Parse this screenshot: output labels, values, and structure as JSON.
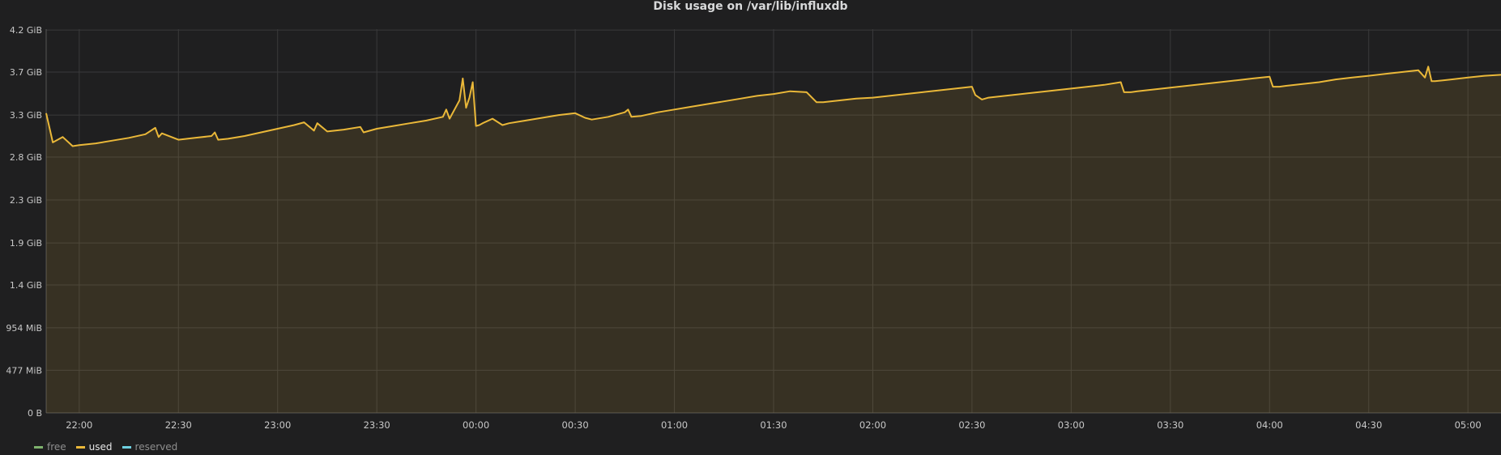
{
  "panel": {
    "title": "Disk usage on /var/lib/influxdb"
  },
  "chart_data": {
    "type": "area",
    "title": "Disk usage on /var/lib/influxdb",
    "xlabel": "",
    "ylabel": "",
    "grid": true,
    "legend_position": "bottom-left",
    "y_unit": "GiB",
    "ylim": [
      0,
      4.2
    ],
    "y_ticks": [
      {
        "value": 0,
        "label": "0 B"
      },
      {
        "value": 0.466,
        "label": "477 MiB"
      },
      {
        "value": 0.932,
        "label": "954 MiB"
      },
      {
        "value": 1.4,
        "label": "1.4 GiB"
      },
      {
        "value": 1.86,
        "label": "1.9 GiB"
      },
      {
        "value": 2.33,
        "label": "2.3 GiB"
      },
      {
        "value": 2.8,
        "label": "2.8 GiB"
      },
      {
        "value": 3.26,
        "label": "3.3 GiB"
      },
      {
        "value": 3.73,
        "label": "3.7 GiB"
      },
      {
        "value": 4.19,
        "label": "4.2 GiB"
      }
    ],
    "x_domain": [
      "21:50",
      "05:10"
    ],
    "x_ticks": [
      "22:00",
      "22:30",
      "23:00",
      "23:30",
      "00:00",
      "00:30",
      "01:00",
      "01:30",
      "02:00",
      "02:30",
      "03:00",
      "03:30",
      "04:00",
      "04:30",
      "05:00"
    ],
    "series": [
      {
        "name": "free",
        "color": "#7eb26d",
        "visible": false,
        "values": []
      },
      {
        "name": "used",
        "color": "#eab839",
        "visible": true,
        "x": [
          "21:50",
          "21:52",
          "21:55",
          "21:58",
          "22:00",
          "22:05",
          "22:10",
          "22:15",
          "22:20",
          "22:23",
          "22:24",
          "22:25",
          "22:30",
          "22:35",
          "22:40",
          "22:41",
          "22:42",
          "22:45",
          "22:50",
          "22:55",
          "23:00",
          "23:05",
          "23:08",
          "23:10",
          "23:11",
          "23:12",
          "23:15",
          "23:20",
          "23:25",
          "23:26",
          "23:30",
          "23:35",
          "23:40",
          "23:45",
          "23:50",
          "23:51",
          "23:52",
          "23:55",
          "23:56",
          "23:57",
          "23:58",
          "23:59",
          "00:00",
          "00:01",
          "00:02",
          "00:05",
          "00:08",
          "00:10",
          "00:15",
          "00:20",
          "00:25",
          "00:30",
          "00:33",
          "00:35",
          "00:40",
          "00:45",
          "00:46",
          "00:47",
          "00:50",
          "00:55",
          "01:00",
          "01:05",
          "01:10",
          "01:15",
          "01:20",
          "01:25",
          "01:30",
          "01:35",
          "01:40",
          "01:43",
          "01:45",
          "01:50",
          "01:55",
          "02:00",
          "02:05",
          "02:10",
          "02:15",
          "02:20",
          "02:25",
          "02:30",
          "02:31",
          "02:33",
          "02:35",
          "02:40",
          "02:45",
          "02:50",
          "02:55",
          "03:00",
          "03:05",
          "03:10",
          "03:15",
          "03:16",
          "03:18",
          "03:20",
          "03:25",
          "03:30",
          "03:35",
          "03:40",
          "03:45",
          "03:50",
          "03:55",
          "04:00",
          "04:01",
          "04:03",
          "04:05",
          "04:10",
          "04:15",
          "04:20",
          "04:25",
          "04:30",
          "04:35",
          "04:40",
          "04:45",
          "04:47",
          "04:48",
          "04:49",
          "04:50",
          "04:55",
          "05:00",
          "05:05",
          "05:10"
        ],
        "values": [
          3.28,
          2.96,
          3.02,
          2.92,
          2.93,
          2.95,
          2.98,
          3.01,
          3.05,
          3.12,
          3.02,
          3.06,
          2.99,
          3.01,
          3.03,
          3.07,
          2.99,
          3.0,
          3.03,
          3.07,
          3.11,
          3.15,
          3.18,
          3.12,
          3.09,
          3.17,
          3.08,
          3.1,
          3.13,
          3.07,
          3.11,
          3.14,
          3.17,
          3.2,
          3.24,
          3.32,
          3.22,
          3.42,
          3.66,
          3.34,
          3.45,
          3.62,
          3.14,
          3.15,
          3.17,
          3.22,
          3.15,
          3.17,
          3.2,
          3.23,
          3.26,
          3.28,
          3.23,
          3.21,
          3.24,
          3.29,
          3.32,
          3.24,
          3.25,
          3.29,
          3.32,
          3.35,
          3.38,
          3.41,
          3.44,
          3.47,
          3.49,
          3.52,
          3.51,
          3.4,
          3.4,
          3.42,
          3.44,
          3.45,
          3.47,
          3.49,
          3.51,
          3.53,
          3.55,
          3.57,
          3.48,
          3.43,
          3.45,
          3.47,
          3.49,
          3.51,
          3.53,
          3.55,
          3.57,
          3.59,
          3.62,
          3.51,
          3.51,
          3.52,
          3.54,
          3.56,
          3.58,
          3.6,
          3.62,
          3.64,
          3.66,
          3.68,
          3.57,
          3.57,
          3.58,
          3.6,
          3.62,
          3.65,
          3.67,
          3.69,
          3.71,
          3.73,
          3.75,
          3.67,
          3.79,
          3.63,
          3.63,
          3.65,
          3.67,
          3.69,
          3.7
        ]
      },
      {
        "name": "reserved",
        "color": "#6ed0e0",
        "visible": false,
        "values": []
      }
    ]
  },
  "legend": {
    "items": [
      {
        "label": "free",
        "color": "#7eb26d"
      },
      {
        "label": "used",
        "color": "#eab839"
      },
      {
        "label": "reserved",
        "color": "#6ed0e0"
      }
    ]
  }
}
